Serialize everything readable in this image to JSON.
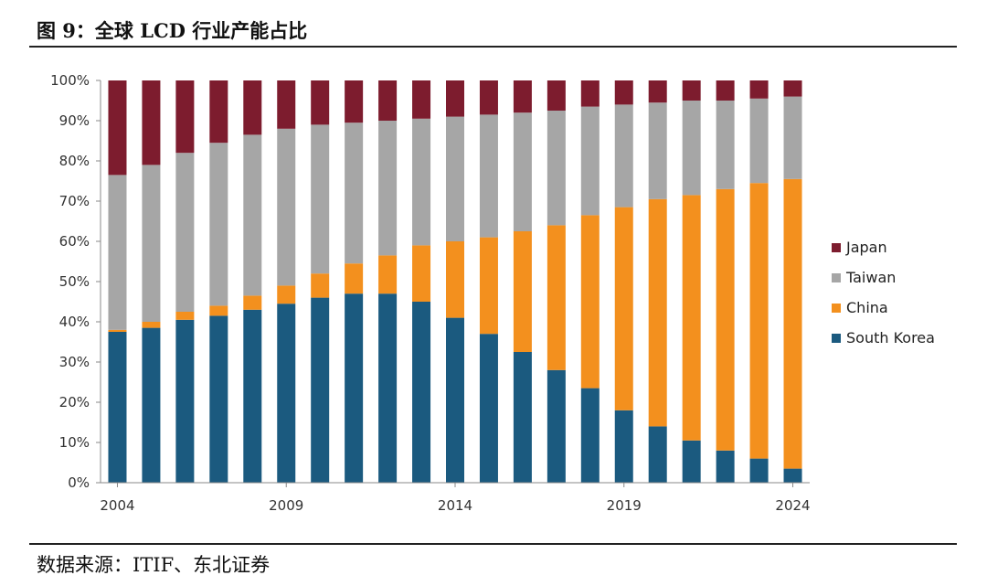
{
  "figure": {
    "title": "图 9：全球 LCD 行业产能占比",
    "source": "数据来源：ITIF、东北证券"
  },
  "chart_data": {
    "type": "bar",
    "stacked": true,
    "x": [
      2004,
      2005,
      2006,
      2007,
      2008,
      2009,
      2010,
      2011,
      2012,
      2013,
      2014,
      2015,
      2016,
      2017,
      2018,
      2019,
      2020,
      2021,
      2022,
      2023,
      2024
    ],
    "x_tick_labels": [
      "2004",
      "2009",
      "2014",
      "2019",
      "2024"
    ],
    "y_tick_labels": [
      "0%",
      "10%",
      "20%",
      "30%",
      "40%",
      "50%",
      "60%",
      "70%",
      "80%",
      "90%",
      "100%"
    ],
    "ylim": [
      0,
      100
    ],
    "series": [
      {
        "name": "South Korea",
        "color": "#1b5a7f",
        "values": [
          37.5,
          38.5,
          40.5,
          41.5,
          43,
          44.5,
          46,
          47,
          47,
          45,
          41,
          37,
          32.5,
          28,
          23.5,
          18,
          14,
          10.5,
          8,
          6,
          3.5
        ]
      },
      {
        "name": "China",
        "color": "#f3901e",
        "values": [
          0.5,
          1.5,
          2,
          2.5,
          3.5,
          4.5,
          6,
          7.5,
          9.5,
          14,
          19,
          24,
          30,
          36,
          43,
          50.5,
          56.5,
          61,
          65,
          68.5,
          72
        ]
      },
      {
        "name": "Taiwan",
        "color": "#a6a6a6",
        "values": [
          38.5,
          39,
          39.5,
          40.5,
          40,
          39,
          37,
          35,
          33.5,
          31.5,
          31,
          30.5,
          29.5,
          28.5,
          27,
          25.5,
          24,
          23.5,
          22,
          21,
          20.5
        ]
      },
      {
        "name": "Japan",
        "color": "#7d1c2e",
        "values": [
          23.5,
          21,
          18,
          15.5,
          13.5,
          12,
          11,
          10.5,
          10,
          9.5,
          9,
          8.5,
          8,
          7.5,
          6.5,
          6,
          5.5,
          5,
          5,
          4.5,
          4
        ]
      }
    ],
    "legend_order": [
      "Japan",
      "Taiwan",
      "China",
      "South Korea"
    ],
    "legend_position": "right",
    "grid": false
  }
}
